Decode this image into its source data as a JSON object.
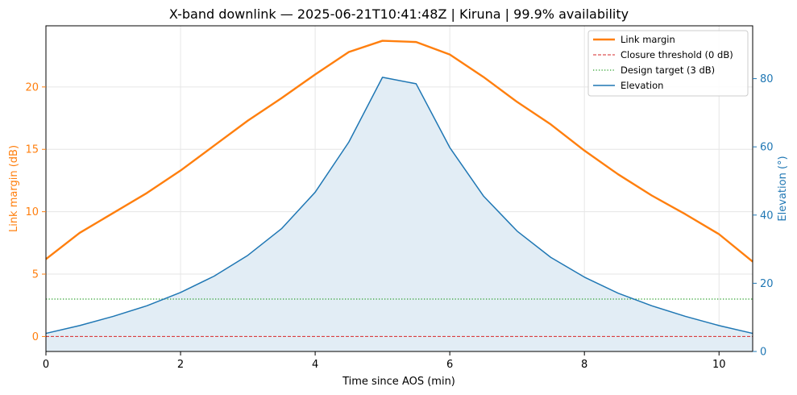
{
  "chart_data": {
    "type": "line",
    "title": "X-band downlink — 2025-06-21T10:41:48Z  |  Kiruna  |  99.9% availability",
    "xlabel": "Time since AOS (min)",
    "ylabel_left": "Link margin (dB)",
    "ylabel_right": "Elevation (°)",
    "xlim": [
      0,
      10.5
    ],
    "ylim_left": [
      -1.2,
      24.9
    ],
    "ylim_right": [
      0,
      95.5
    ],
    "x_ticks": [
      0,
      2,
      4,
      6,
      8,
      10
    ],
    "y_left_ticks": [
      0,
      5,
      10,
      15,
      20
    ],
    "y_right_ticks": [
      0,
      20,
      40,
      60,
      80
    ],
    "grid": true,
    "legend_position": "top-right",
    "colors": {
      "margin": "#ff7f0e",
      "threshold": "#d62728",
      "target": "#2ca02c",
      "elevation": "#1f77b4",
      "elevation_fill": "#e2edf5"
    },
    "x": [
      0,
      0.5,
      1,
      1.5,
      2,
      2.5,
      3,
      3.5,
      4,
      4.5,
      5,
      5.5,
      6,
      6.5,
      7,
      7.5,
      8,
      8.5,
      9,
      9.5,
      10,
      10.5
    ],
    "series": [
      {
        "name": "Link margin",
        "axis": "left",
        "style": "solid",
        "values": [
          6.2,
          8.3,
          9.9,
          11.5,
          13.3,
          15.3,
          17.3,
          19.1,
          21.0,
          22.8,
          23.7,
          23.6,
          22.6,
          20.8,
          18.8,
          17.0,
          14.9,
          13.0,
          11.3,
          9.8,
          8.2,
          6.0
        ]
      },
      {
        "name": "Closure threshold (0 dB)",
        "axis": "left",
        "style": "dashed",
        "constant": 0
      },
      {
        "name": "Design target (3 dB)",
        "axis": "left",
        "style": "dotted",
        "constant": 3
      },
      {
        "name": "Elevation",
        "axis": "right",
        "style": "solid",
        "values": [
          5.3,
          7.6,
          10.3,
          13.4,
          17.3,
          22.1,
          28.2,
          36.0,
          46.7,
          61.4,
          80.4,
          78.5,
          59.8,
          45.6,
          35.3,
          27.6,
          21.8,
          17.1,
          13.4,
          10.3,
          7.6,
          5.3
        ]
      }
    ]
  }
}
